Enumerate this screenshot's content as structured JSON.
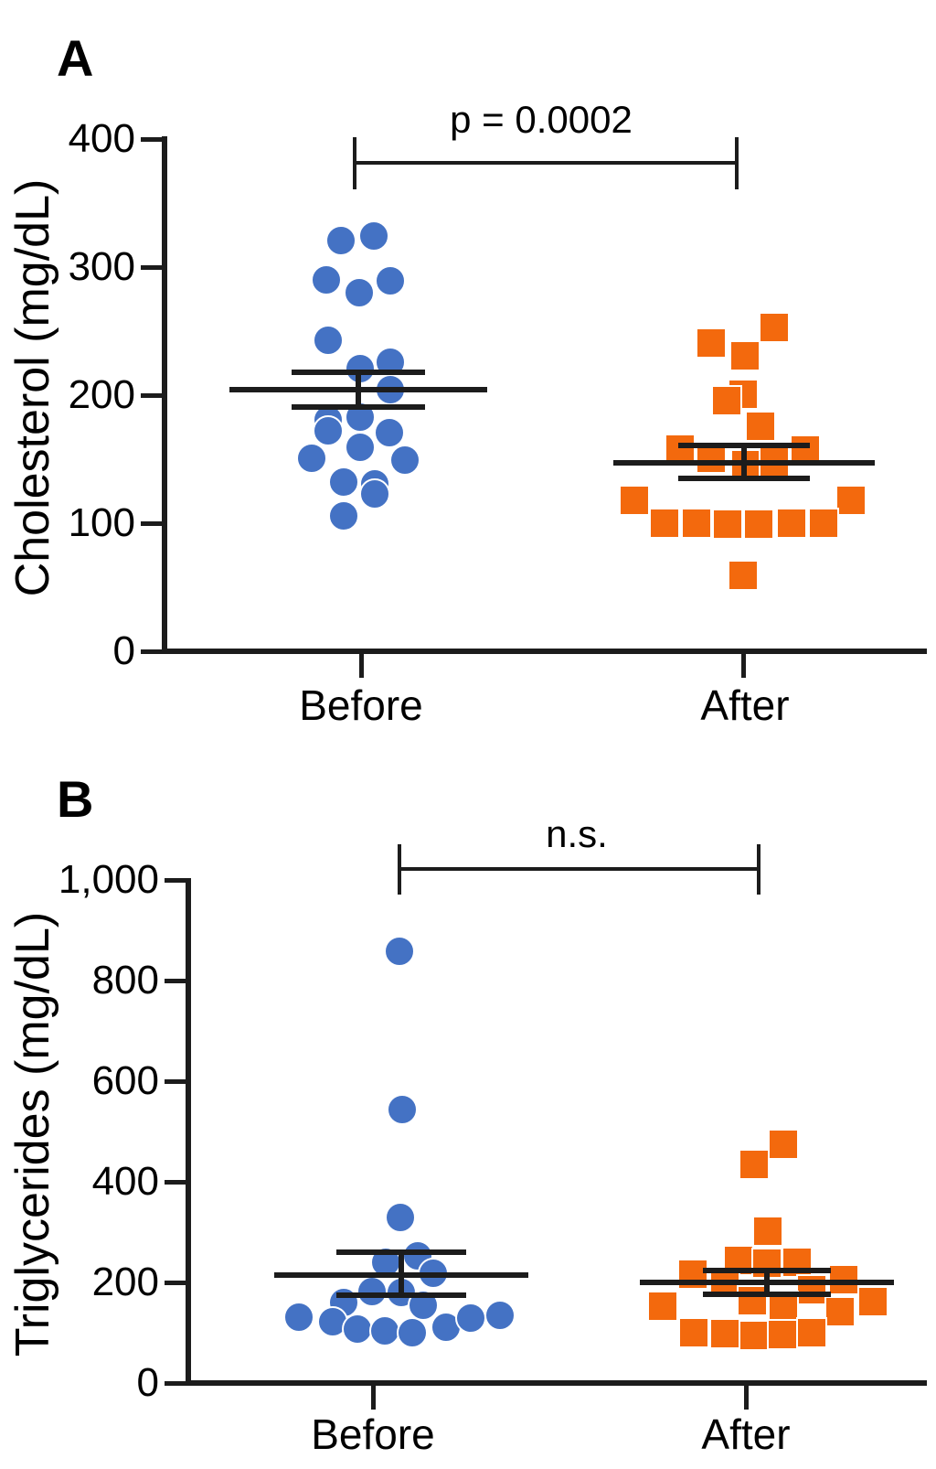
{
  "chart_data": [
    {
      "type": "scatter",
      "panel_label": "A",
      "title": "",
      "ylabel": "Cholesterol (mg/dL)",
      "xlabel": "",
      "categories": [
        "Before",
        "After"
      ],
      "ylim": [
        0,
        400
      ],
      "grid": false,
      "legend": "none",
      "significance": "p = 0.0002",
      "yticks": [
        {
          "v": 400,
          "label": "400"
        },
        {
          "v": 300,
          "label": "300"
        },
        {
          "v": 200,
          "label": "200"
        },
        {
          "v": 100,
          "label": "100"
        },
        {
          "v": 0,
          "label": "0"
        }
      ],
      "series": [
        {
          "name": "Before",
          "marker": "circle",
          "color": "#4472C4",
          "mean": 204,
          "sem_upper": 218,
          "sem_lower": 191,
          "points": [
            {
              "v": 321,
              "dx": -19
            },
            {
              "v": 324,
              "dx": 17
            },
            {
              "v": 290,
              "dx": -35
            },
            {
              "v": 280,
              "dx": 1
            },
            {
              "v": 289,
              "dx": 35
            },
            {
              "v": 243,
              "dx": -33
            },
            {
              "v": 221,
              "dx": 2
            },
            {
              "v": 226,
              "dx": 35
            },
            {
              "v": 204,
              "dx": 35
            },
            {
              "v": 181,
              "dx": -33
            },
            {
              "v": 172,
              "dx": -33
            },
            {
              "v": 183,
              "dx": 2
            },
            {
              "v": 171,
              "dx": 34
            },
            {
              "v": 159,
              "dx": 2
            },
            {
              "v": 151,
              "dx": -51
            },
            {
              "v": 149,
              "dx": 51
            },
            {
              "v": 132,
              "dx": -16
            },
            {
              "v": 131,
              "dx": 18
            },
            {
              "v": 123,
              "dx": 18
            },
            {
              "v": 106,
              "dx": -16
            }
          ]
        },
        {
          "name": "After",
          "marker": "square",
          "color": "#F3690D",
          "mean": 147,
          "sem_upper": 161,
          "sem_lower": 135,
          "points": [
            {
              "v": 253,
              "dx": 33
            },
            {
              "v": 241,
              "dx": -36
            },
            {
              "v": 231,
              "dx": 1
            },
            {
              "v": 201,
              "dx": -1
            },
            {
              "v": 196,
              "dx": -19
            },
            {
              "v": 176,
              "dx": 18
            },
            {
              "v": 158,
              "dx": -70
            },
            {
              "v": 157,
              "dx": 67
            },
            {
              "v": 151,
              "dx": -36
            },
            {
              "v": 146,
              "dx": 2
            },
            {
              "v": 148,
              "dx": 33
            },
            {
              "v": 118,
              "dx": -120
            },
            {
              "v": 118,
              "dx": 117
            },
            {
              "v": 100,
              "dx": -87
            },
            {
              "v": 100,
              "dx": -52
            },
            {
              "v": 99,
              "dx": -18
            },
            {
              "v": 99,
              "dx": 16
            },
            {
              "v": 100,
              "dx": 52
            },
            {
              "v": 100,
              "dx": 87
            },
            {
              "v": 59,
              "dx": -1
            }
          ]
        }
      ]
    },
    {
      "type": "scatter",
      "panel_label": "B",
      "title": "",
      "ylabel": "Triglycerides (mg/dL)",
      "xlabel": "",
      "categories": [
        "Before",
        "After"
      ],
      "ylim": [
        0,
        1000
      ],
      "grid": false,
      "legend": "none",
      "significance": "n.s.",
      "yticks": [
        {
          "v": 1000,
          "label": "1,000"
        },
        {
          "v": 800,
          "label": "800"
        },
        {
          "v": 600,
          "label": "600"
        },
        {
          "v": 400,
          "label": "400"
        },
        {
          "v": 200,
          "label": "200"
        },
        {
          "v": 0,
          "label": "0"
        }
      ],
      "series": [
        {
          "name": "Before",
          "marker": "circle",
          "color": "#4472C4",
          "mean": 215,
          "sem_upper": 260,
          "sem_lower": 175,
          "points": [
            {
              "v": 858,
              "dx": -2
            },
            {
              "v": 544,
              "dx": 1
            },
            {
              "v": 330,
              "dx": -1
            },
            {
              "v": 240,
              "dx": -17
            },
            {
              "v": 253,
              "dx": 18
            },
            {
              "v": 218,
              "dx": 35
            },
            {
              "v": 182,
              "dx": -32
            },
            {
              "v": 180,
              "dx": 0
            },
            {
              "v": 160,
              "dx": -63
            },
            {
              "v": 155,
              "dx": 24
            },
            {
              "v": 131,
              "dx": -112
            },
            {
              "v": 122,
              "dx": -75
            },
            {
              "v": 107,
              "dx": -48
            },
            {
              "v": 104,
              "dx": -18
            },
            {
              "v": 100,
              "dx": 12
            },
            {
              "v": 111,
              "dx": 49
            },
            {
              "v": 129,
              "dx": 76
            },
            {
              "v": 135,
              "dx": 108
            }
          ]
        },
        {
          "name": "After",
          "marker": "square",
          "color": "#F3690D",
          "mean": 200,
          "sem_upper": 224,
          "sem_lower": 176,
          "points": [
            {
              "v": 475,
              "dx": 18
            },
            {
              "v": 435,
              "dx": -14
            },
            {
              "v": 302,
              "dx": 1
            },
            {
              "v": 244,
              "dx": -31
            },
            {
              "v": 238,
              "dx": 0
            },
            {
              "v": 240,
              "dx": 33
            },
            {
              "v": 216,
              "dx": -81
            },
            {
              "v": 205,
              "dx": 84
            },
            {
              "v": 198,
              "dx": -46
            },
            {
              "v": 185,
              "dx": 49
            },
            {
              "v": 164,
              "dx": -16
            },
            {
              "v": 162,
              "dx": 116
            },
            {
              "v": 153,
              "dx": -114
            },
            {
              "v": 153,
              "dx": 18
            },
            {
              "v": 142,
              "dx": 80
            },
            {
              "v": 100,
              "dx": -80
            },
            {
              "v": 98,
              "dx": -46
            },
            {
              "v": 95,
              "dx": -14
            },
            {
              "v": 96,
              "dx": 17
            },
            {
              "v": 100,
              "dx": 49
            }
          ]
        }
      ]
    }
  ]
}
